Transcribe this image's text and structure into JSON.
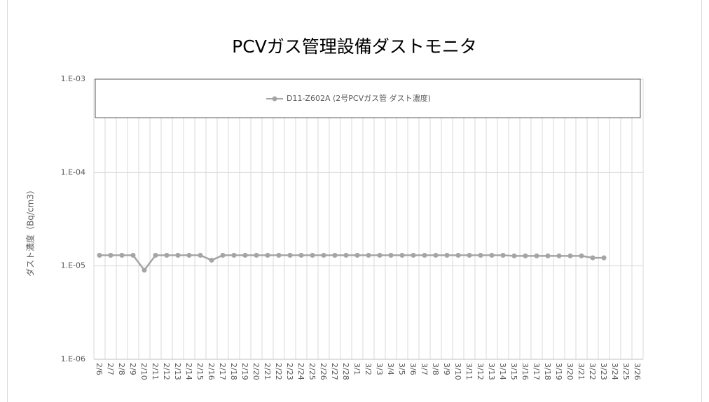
{
  "chart_data": {
    "type": "line",
    "title": "PCVガス管理設備ダストモニタ",
    "y_label": "ダスト濃度（Bq/cm3）",
    "log_y": true,
    "grid": true,
    "legend": "top",
    "categories": [
      "2/6",
      "2/7",
      "2/8",
      "2/9",
      "2/10",
      "2/11",
      "2/12",
      "2/13",
      "2/14",
      "2/15",
      "2/16",
      "2/17",
      "2/18",
      "2/19",
      "2/20",
      "2/21",
      "2/22",
      "2/23",
      "2/24",
      "2/25",
      "2/26",
      "2/27",
      "2/28",
      "3/1",
      "3/2",
      "3/3",
      "3/4",
      "3/5",
      "3/6",
      "3/7",
      "3/8",
      "3/9",
      "3/10",
      "3/11",
      "3/12",
      "3/13",
      "3/14",
      "3/15",
      "3/16",
      "3/17",
      "3/18",
      "3/19",
      "3/20",
      "3/21",
      "3/22",
      "3/23",
      "3/24",
      "3/25",
      "3/26"
    ],
    "series": [
      {
        "name": "D11-Z602A (2号PCVガス管 ダスト濃度)",
        "color": "#a5a5a5",
        "values": [
          1.3e-05,
          1.3e-05,
          1.3e-05,
          1.3e-05,
          9e-06,
          1.3e-05,
          1.3e-05,
          1.3e-05,
          1.3e-05,
          1.3e-05,
          1.15e-05,
          1.3e-05,
          1.3e-05,
          1.3e-05,
          1.3e-05,
          1.3e-05,
          1.3e-05,
          1.3e-05,
          1.3e-05,
          1.3e-05,
          1.3e-05,
          1.3e-05,
          1.3e-05,
          1.3e-05,
          1.3e-05,
          1.3e-05,
          1.3e-05,
          1.3e-05,
          1.3e-05,
          1.3e-05,
          1.3e-05,
          1.3e-05,
          1.3e-05,
          1.3e-05,
          1.3e-05,
          1.3e-05,
          1.3e-05,
          1.28e-05,
          1.28e-05,
          1.28e-05,
          1.28e-05,
          1.28e-05,
          1.28e-05,
          1.28e-05,
          1.22e-05,
          1.22e-05,
          null,
          null,
          null
        ]
      }
    ],
    "ylim": [
      1e-06,
      0.001
    ],
    "yticks": [
      {
        "value": 1e-06,
        "label": "1.E-06"
      },
      {
        "value": 1e-05,
        "label": "1.E-05"
      },
      {
        "value": 0.0001,
        "label": "1.E-04"
      },
      {
        "value": 0.001,
        "label": "1.E-03"
      }
    ]
  }
}
